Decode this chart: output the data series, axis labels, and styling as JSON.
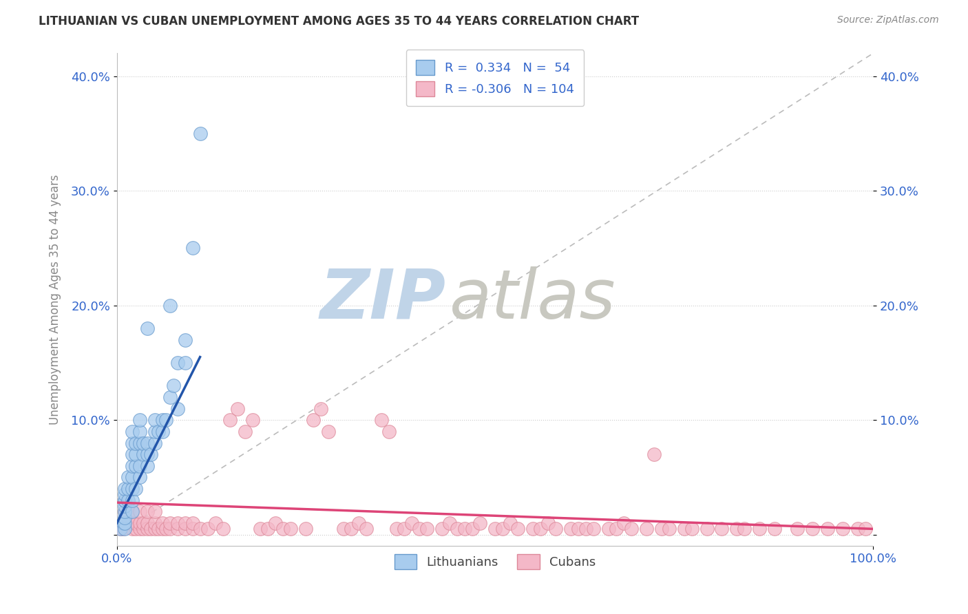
{
  "title": "LITHUANIAN VS CUBAN UNEMPLOYMENT AMONG AGES 35 TO 44 YEARS CORRELATION CHART",
  "source": "Source: ZipAtlas.com",
  "ylabel": "Unemployment Among Ages 35 to 44 years",
  "yticks": [
    0.0,
    0.1,
    0.2,
    0.3,
    0.4
  ],
  "ytick_labels": [
    "",
    "10.0%",
    "20.0%",
    "30.0%",
    "40.0%"
  ],
  "xlim": [
    0.0,
    1.0
  ],
  "ylim": [
    -0.01,
    0.42
  ],
  "legend_label1": "Lithuanians",
  "legend_label2": "Cubans",
  "R_lith": 0.334,
  "N_lith": 54,
  "R_cuban": -0.306,
  "N_cuban": 104,
  "blue_color": "#A8CCEE",
  "blue_edge": "#6699CC",
  "blue_line": "#2255AA",
  "pink_color": "#F4B8C8",
  "pink_edge": "#DD8899",
  "pink_line": "#DD4477",
  "watermark_zip_color": "#C8D8E8",
  "watermark_atlas_color": "#C8C8C8",
  "background": "#FFFFFF",
  "grid_color": "#CCCCCC",
  "lith_x": [
    0.005,
    0.008,
    0.01,
    0.01,
    0.01,
    0.01,
    0.01,
    0.01,
    0.01,
    0.01,
    0.01,
    0.015,
    0.015,
    0.015,
    0.02,
    0.02,
    0.02,
    0.02,
    0.02,
    0.02,
    0.02,
    0.02,
    0.025,
    0.025,
    0.025,
    0.025,
    0.03,
    0.03,
    0.03,
    0.03,
    0.03,
    0.035,
    0.035,
    0.04,
    0.04,
    0.04,
    0.04,
    0.045,
    0.05,
    0.05,
    0.05,
    0.055,
    0.06,
    0.06,
    0.065,
    0.07,
    0.07,
    0.075,
    0.08,
    0.08,
    0.09,
    0.09,
    0.1,
    0.11
  ],
  "lith_y": [
    0.005,
    0.01,
    0.005,
    0.01,
    0.015,
    0.02,
    0.025,
    0.03,
    0.03,
    0.035,
    0.04,
    0.03,
    0.04,
    0.05,
    0.02,
    0.03,
    0.04,
    0.05,
    0.06,
    0.07,
    0.08,
    0.09,
    0.04,
    0.06,
    0.07,
    0.08,
    0.05,
    0.06,
    0.08,
    0.09,
    0.1,
    0.07,
    0.08,
    0.06,
    0.07,
    0.08,
    0.18,
    0.07,
    0.08,
    0.09,
    0.1,
    0.09,
    0.09,
    0.1,
    0.1,
    0.12,
    0.2,
    0.13,
    0.11,
    0.15,
    0.15,
    0.17,
    0.25,
    0.35
  ],
  "cuban_x": [
    0.005,
    0.008,
    0.01,
    0.01,
    0.01,
    0.015,
    0.015,
    0.02,
    0.02,
    0.02,
    0.025,
    0.025,
    0.03,
    0.03,
    0.03,
    0.035,
    0.035,
    0.04,
    0.04,
    0.04,
    0.045,
    0.05,
    0.05,
    0.05,
    0.055,
    0.06,
    0.06,
    0.065,
    0.07,
    0.07,
    0.08,
    0.08,
    0.09,
    0.09,
    0.1,
    0.1,
    0.11,
    0.12,
    0.13,
    0.14,
    0.15,
    0.16,
    0.17,
    0.18,
    0.19,
    0.2,
    0.21,
    0.22,
    0.23,
    0.25,
    0.26,
    0.27,
    0.28,
    0.3,
    0.31,
    0.32,
    0.33,
    0.35,
    0.36,
    0.37,
    0.38,
    0.39,
    0.4,
    0.41,
    0.43,
    0.44,
    0.45,
    0.46,
    0.47,
    0.48,
    0.5,
    0.51,
    0.52,
    0.53,
    0.55,
    0.56,
    0.57,
    0.58,
    0.6,
    0.61,
    0.62,
    0.63,
    0.65,
    0.66,
    0.67,
    0.68,
    0.7,
    0.71,
    0.72,
    0.73,
    0.75,
    0.76,
    0.78,
    0.8,
    0.82,
    0.83,
    0.85,
    0.87,
    0.9,
    0.92,
    0.94,
    0.96,
    0.98,
    0.99
  ],
  "cuban_y": [
    0.005,
    0.005,
    0.01,
    0.02,
    0.03,
    0.01,
    0.02,
    0.005,
    0.01,
    0.02,
    0.005,
    0.01,
    0.005,
    0.01,
    0.02,
    0.005,
    0.01,
    0.005,
    0.01,
    0.02,
    0.005,
    0.005,
    0.01,
    0.02,
    0.005,
    0.005,
    0.01,
    0.005,
    0.005,
    0.01,
    0.005,
    0.01,
    0.005,
    0.01,
    0.005,
    0.01,
    0.005,
    0.005,
    0.01,
    0.005,
    0.1,
    0.11,
    0.09,
    0.1,
    0.005,
    0.005,
    0.01,
    0.005,
    0.005,
    0.005,
    0.1,
    0.11,
    0.09,
    0.005,
    0.005,
    0.01,
    0.005,
    0.1,
    0.09,
    0.005,
    0.005,
    0.01,
    0.005,
    0.005,
    0.005,
    0.01,
    0.005,
    0.005,
    0.005,
    0.01,
    0.005,
    0.005,
    0.01,
    0.005,
    0.005,
    0.005,
    0.01,
    0.005,
    0.005,
    0.005,
    0.005,
    0.005,
    0.005,
    0.005,
    0.01,
    0.005,
    0.005,
    0.07,
    0.005,
    0.005,
    0.005,
    0.005,
    0.005,
    0.005,
    0.005,
    0.005,
    0.005,
    0.005,
    0.005,
    0.005,
    0.005,
    0.005,
    0.005,
    0.005
  ],
  "lith_trendline_x": [
    0.0,
    0.11
  ],
  "lith_trendline_y": [
    0.01,
    0.155
  ],
  "cuban_trendline_x": [
    0.0,
    1.0
  ],
  "cuban_trendline_y": [
    0.028,
    0.005
  ]
}
